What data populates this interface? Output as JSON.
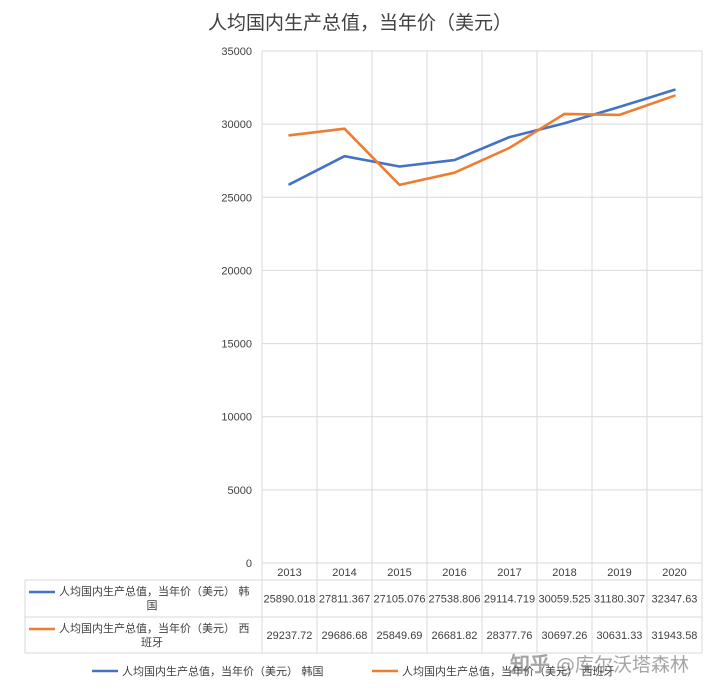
{
  "title": "人均国内生产总值，当年价（美元）",
  "chart_data": {
    "type": "line",
    "title": "人均国内生产总值，当年价（美元）",
    "categories": [
      "2013",
      "2014",
      "2015",
      "2016",
      "2017",
      "2018",
      "2019",
      "2020"
    ],
    "ylim": [
      0,
      35000
    ],
    "yticks": [
      "0",
      "5000",
      "10000",
      "15000",
      "20000",
      "25000",
      "30000",
      "35000"
    ],
    "grid": true,
    "legend_position": "bottom",
    "series": [
      {
        "name": "人均国内生产总值，当年价（美元） 韩国",
        "table_label_lines": [
          "人均国内生产总值，当年价（美元） 韩",
          "国"
        ],
        "color": "#4472C4",
        "values": [
          25890.018,
          27811.367,
          27105.076,
          27538.806,
          29114.719,
          30059.525,
          31180.307,
          32347.63
        ],
        "value_labels": [
          "25890.018",
          "27811.367",
          "27105.076",
          "27538.806",
          "29114.719",
          "30059.525",
          "31180.307",
          "32347.63"
        ]
      },
      {
        "name": "人均国内生产总值，当年价（美元） 西班牙",
        "table_label_lines": [
          "人均国内生产总值，当年价（美元） 西",
          "班牙"
        ],
        "color": "#ED7D31",
        "values": [
          29237.72,
          29686.68,
          25849.69,
          26681.82,
          28377.76,
          30697.26,
          30631.33,
          31943.58
        ],
        "value_labels": [
          "29237.72",
          "29686.68",
          "25849.69",
          "26681.82",
          "28377.76",
          "30697.26",
          "30631.33",
          "31943.58"
        ]
      }
    ]
  },
  "watermark": {
    "prefix": "知乎",
    "handle": "@库尔沃塔森林"
  }
}
